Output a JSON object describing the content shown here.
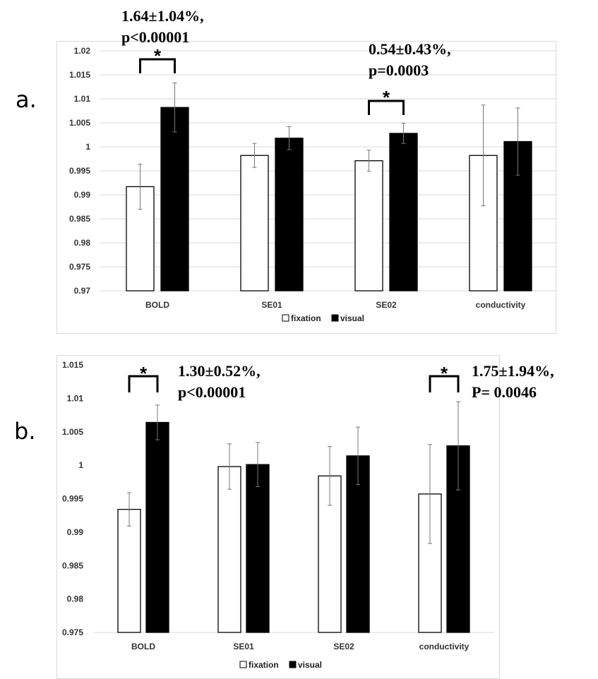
{
  "legend": {
    "series": [
      "fixation",
      "visual"
    ]
  },
  "panels": [
    {
      "label": "a.",
      "annotations": [
        {
          "lines": [
            "1.64±1.04%,",
            "p<0.00001"
          ],
          "star": "*"
        },
        {
          "lines": [
            "0.54±0.43%,",
            "p=0.0003"
          ],
          "star": "*"
        }
      ]
    },
    {
      "label": "b.",
      "annotations": [
        {
          "lines": [
            "1.30±0.52%,",
            "p<0.00001"
          ],
          "star": "*"
        },
        {
          "lines": [
            "1.75±1.94%,",
            "P= 0.0046"
          ],
          "star": "*"
        }
      ]
    }
  ],
  "chart_data": [
    {
      "type": "bar",
      "panel": "a.",
      "categories": [
        "BOLD",
        "SE01",
        "SE02",
        "conductivity"
      ],
      "series": [
        {
          "name": "fixation",
          "color": "#ffffff",
          "values": [
            0.9917,
            0.9982,
            0.9971,
            0.9982
          ],
          "errors": [
            0.0047,
            0.0025,
            0.0022,
            0.0105
          ]
        },
        {
          "name": "visual",
          "color": "#000000",
          "values": [
            1.0082,
            1.0018,
            1.0028,
            1.0011
          ],
          "errors": [
            0.0051,
            0.0024,
            0.0021,
            0.007
          ]
        }
      ],
      "ylim": [
        0.97,
        1.02
      ],
      "yticks": [
        "0.97",
        "0.975",
        "0.98",
        "0.985",
        "0.99",
        "0.995",
        "1",
        "1.005",
        "1.01",
        "1.015",
        "1.02"
      ],
      "grid": true,
      "legend": "bottom"
    },
    {
      "type": "bar",
      "panel": "b.",
      "categories": [
        "BOLD",
        "SE01",
        "SE02",
        "conductivity"
      ],
      "series": [
        {
          "name": "fixation",
          "color": "#ffffff",
          "values": [
            0.9934,
            0.9998,
            0.9984,
            0.9957
          ],
          "errors": [
            0.0025,
            0.0034,
            0.0044,
            0.0074
          ]
        },
        {
          "name": "visual",
          "color": "#000000",
          "values": [
            1.0064,
            1.0001,
            1.0014,
            1.0029
          ],
          "errors": [
            0.0026,
            0.0033,
            0.0043,
            0.0066
          ]
        }
      ],
      "ylim": [
        0.975,
        1.015
      ],
      "yticks": [
        "0.975",
        "0.98",
        "0.985",
        "0.99",
        "0.995",
        "1",
        "1.005",
        "1.01",
        "1.015"
      ],
      "grid": false,
      "legend": "bottom"
    }
  ]
}
